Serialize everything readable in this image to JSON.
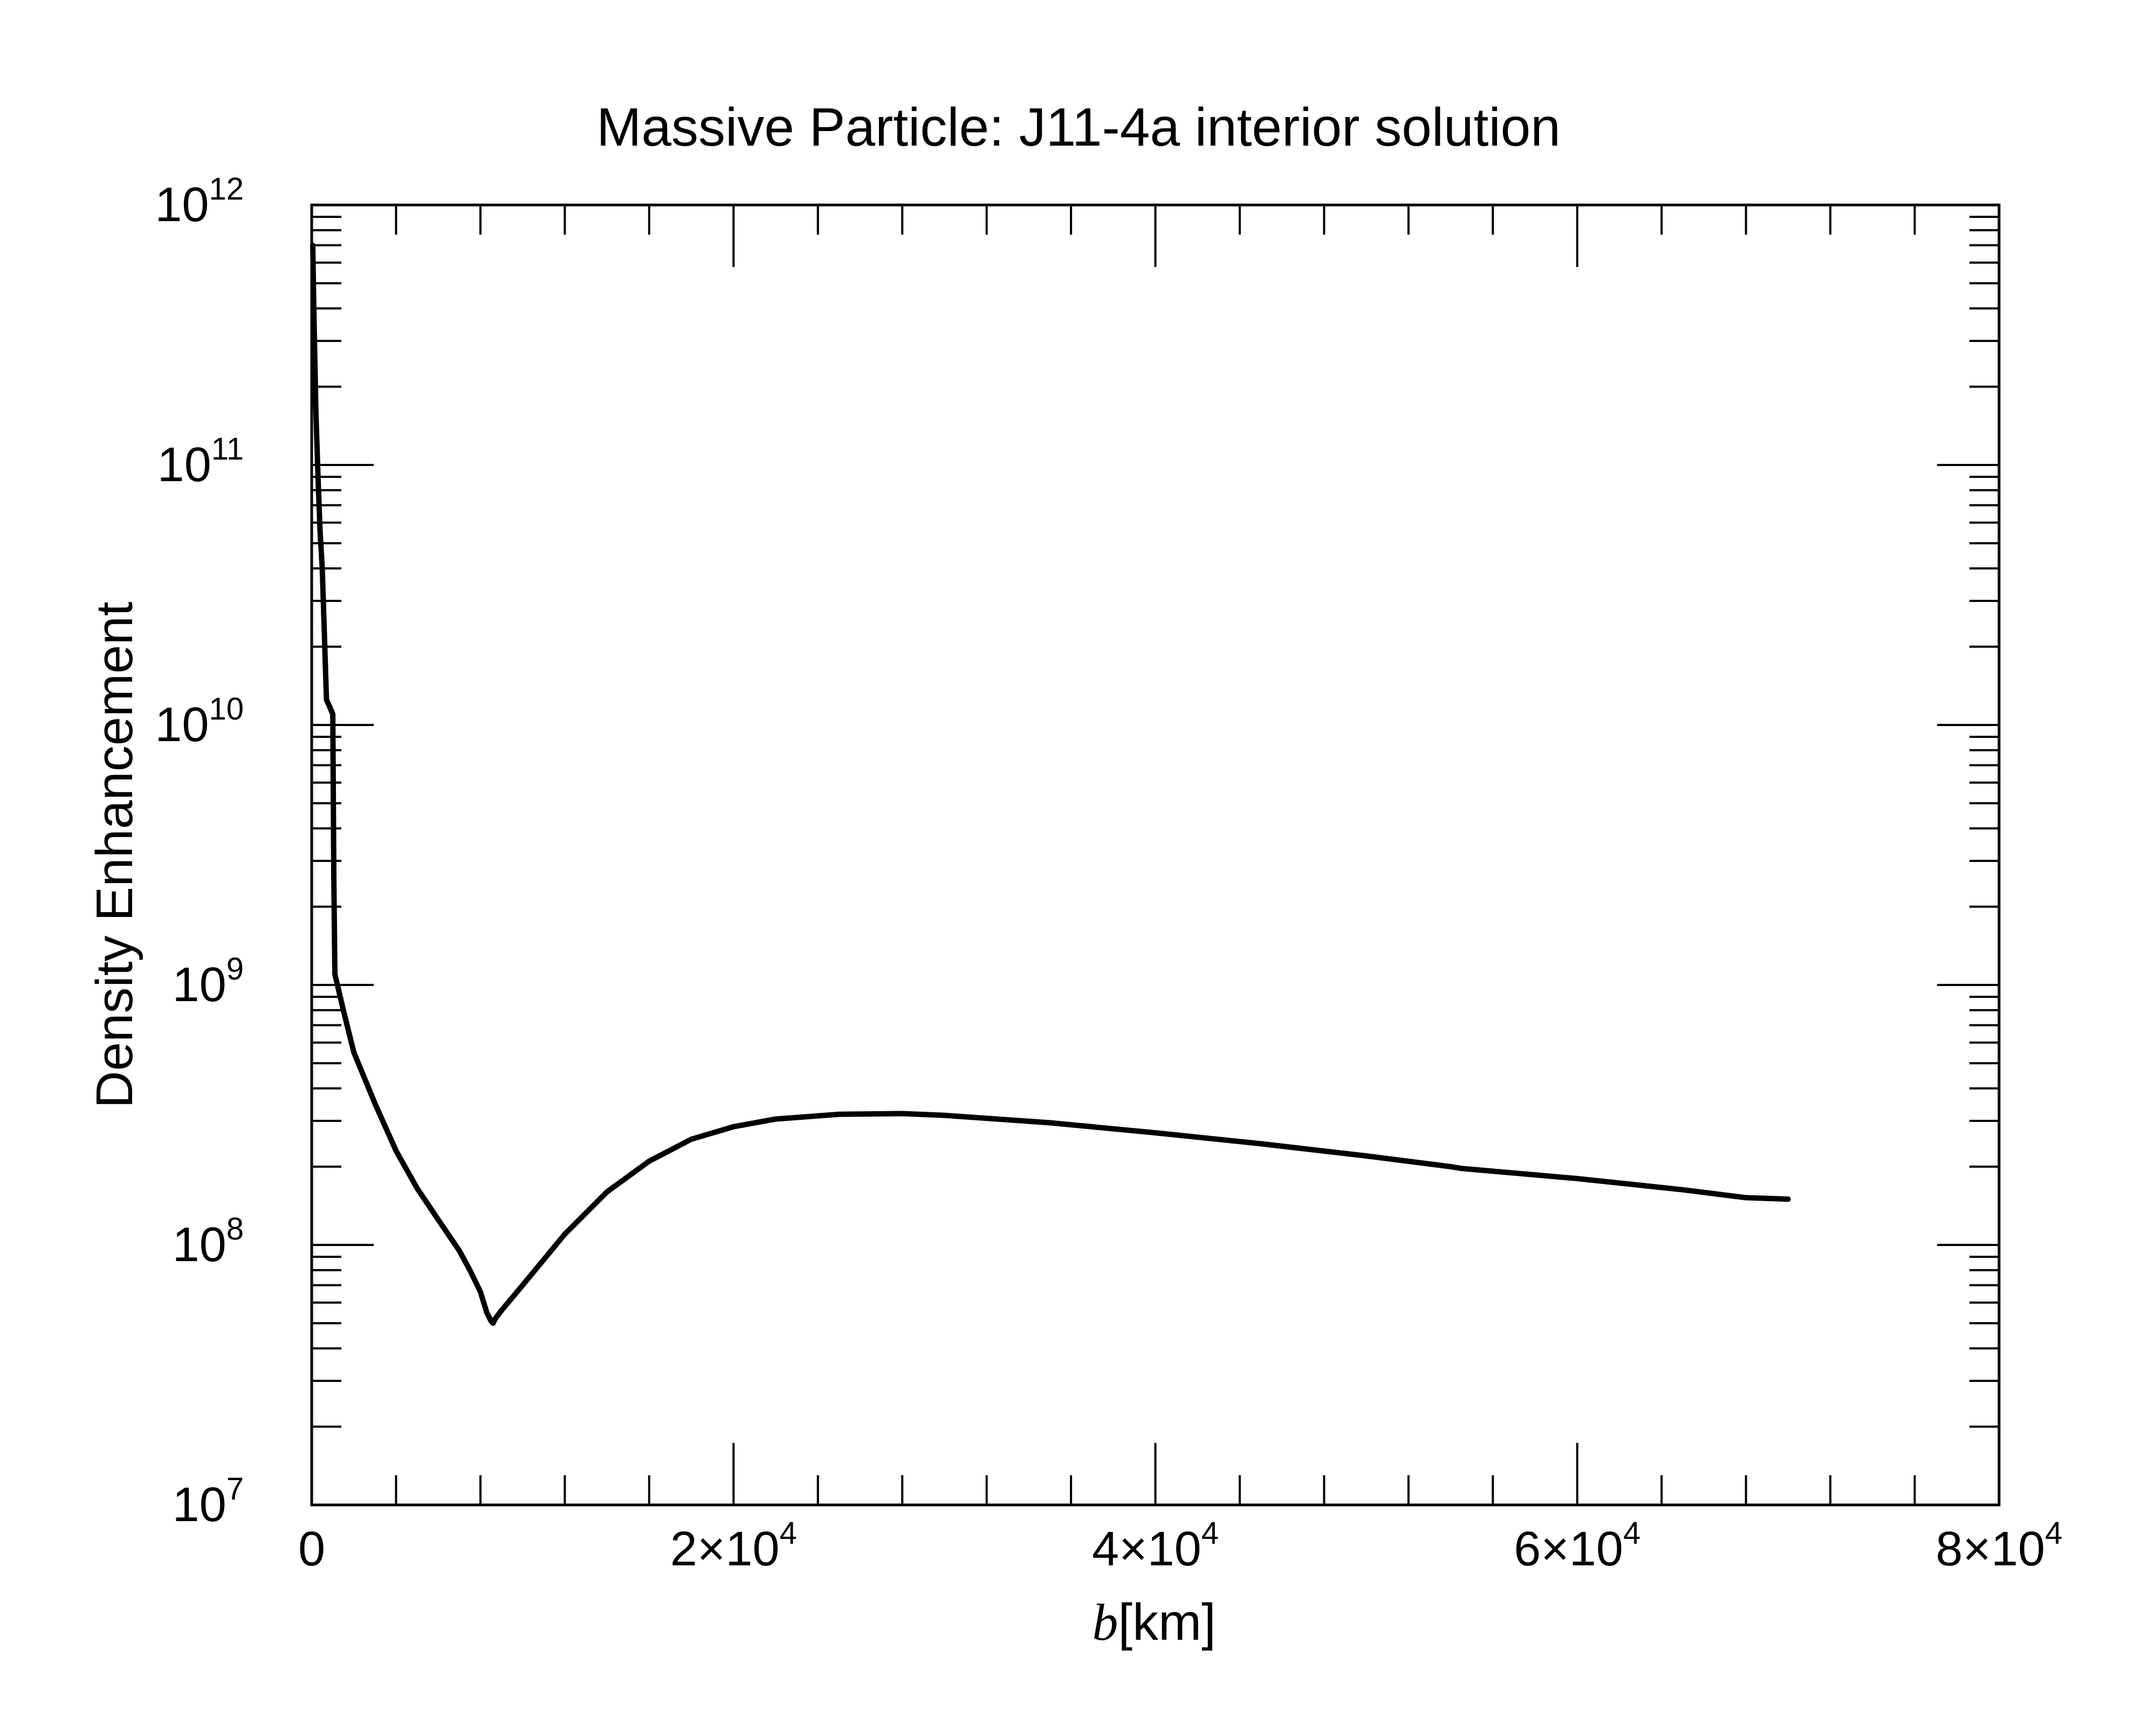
{
  "chart_data": {
    "type": "line",
    "title": "Massive Particle: J11-4a interior solution",
    "xlabel_var": "b",
    "xlabel_unit": "[km]",
    "ylabel": "Density Enhancement",
    "xlim": [
      0,
      80000
    ],
    "ylim": [
      10000000,
      1000000000000
    ],
    "yscale": "log",
    "x_ticks": [
      {
        "value": 0,
        "mantissa": "0",
        "exp": ""
      },
      {
        "value": 20000,
        "mantissa": "2×10",
        "exp": "4"
      },
      {
        "value": 40000,
        "mantissa": "4×10",
        "exp": "4"
      },
      {
        "value": 60000,
        "mantissa": "6×10",
        "exp": "4"
      },
      {
        "value": 80000,
        "mantissa": "8×10",
        "exp": "4"
      }
    ],
    "y_ticks": [
      {
        "value": 10000000,
        "base": "10",
        "exp": "7"
      },
      {
        "value": 100000000,
        "base": "10",
        "exp": "8"
      },
      {
        "value": 1000000000,
        "base": "10",
        "exp": "9"
      },
      {
        "value": 10000000000,
        "base": "10",
        "exp": "10"
      },
      {
        "value": 100000000000,
        "base": "10",
        "exp": "11"
      },
      {
        "value": 1000000000000,
        "base": "10",
        "exp": "12"
      }
    ],
    "series": [
      {
        "name": "J11-4a interior solution",
        "color": "#000000",
        "x": [
          50,
          100,
          200,
          300,
          400,
          500,
          700,
          800,
          900,
          1000,
          1050,
          1100,
          1500,
          2000,
          3000,
          4000,
          5000,
          6000,
          7000,
          7500,
          8000,
          8300,
          8500,
          8600,
          8700,
          9000,
          10000,
          12000,
          14000,
          16000,
          18000,
          20000,
          22000,
          25000,
          28000,
          30000,
          35000,
          40000,
          45000,
          50000,
          54000,
          54500,
          60000,
          65000,
          68000,
          70000
        ],
        "y": [
          700000000000,
          400000000000,
          160000000000,
          90000000000,
          55000000000,
          40000000000,
          12500000000,
          12000000000,
          11500000000,
          11000000000,
          2500000000,
          1100000000,
          800000000,
          550000000,
          350000000,
          230000000,
          165000000,
          125000000,
          95000000,
          80000000,
          66000000,
          55000000,
          51000000,
          50000000,
          52000000,
          56000000,
          70000000,
          110000000,
          160000000,
          210000000,
          255000000,
          285000000,
          305000000,
          318000000,
          320000000,
          315000000,
          295000000,
          270000000,
          245000000,
          220000000,
          200000000,
          197000000,
          180000000,
          163000000,
          152000000,
          150000000
        ]
      }
    ]
  }
}
